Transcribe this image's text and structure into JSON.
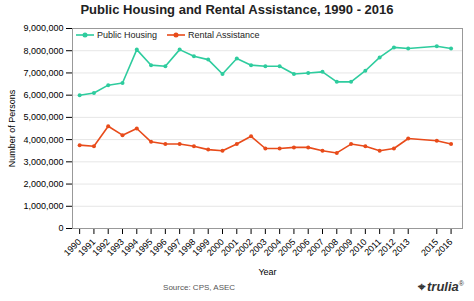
{
  "chart_data": {
    "type": "line",
    "title": "Public Housing and Rental Assistance, 1990 - 2016",
    "xlabel": "Year",
    "ylabel": "Number of Persons",
    "annotations": [
      "Source: CPS, ASEC",
      "⌖",
      "trulia",
      "®"
    ],
    "x": [
      1990,
      1991,
      1992,
      1993,
      1994,
      1995,
      1996,
      1997,
      1998,
      1999,
      2000,
      2001,
      2002,
      2003,
      2004,
      2005,
      2006,
      2007,
      2008,
      2009,
      2010,
      2011,
      2012,
      2013,
      2015,
      2016
    ],
    "series": [
      {
        "name": "Public Housing",
        "color": "#2ecc9e",
        "marker": "o",
        "values": [
          6000000,
          6100000,
          6450000,
          6550000,
          8050000,
          7350000,
          7300000,
          8050000,
          7750000,
          7600000,
          6950000,
          7650000,
          7350000,
          7300000,
          7300000,
          6950000,
          7000000,
          7050000,
          6600000,
          6600000,
          7100000,
          7700000,
          8150000,
          8100000,
          8200000,
          8100000
        ]
      },
      {
        "name": "Rental Assistance",
        "color": "#e84b1a",
        "marker": "o",
        "values": [
          3750000,
          3700000,
          4600000,
          4200000,
          4500000,
          3900000,
          3800000,
          3800000,
          3700000,
          3550000,
          3500000,
          3800000,
          4150000,
          3600000,
          3600000,
          3650000,
          3650000,
          3500000,
          3400000,
          3800000,
          3700000,
          3500000,
          3600000,
          4050000,
          3950000,
          3800000
        ]
      }
    ],
    "xlim": [
      1989.5,
      2016.8
    ],
    "xticks": [
      1990,
      1991,
      1992,
      1993,
      1994,
      1995,
      1996,
      1997,
      1998,
      1999,
      2000,
      2001,
      2002,
      2003,
      2004,
      2005,
      2006,
      2007,
      2008,
      2009,
      2010,
      2011,
      2012,
      2013,
      2015,
      2016
    ],
    "ylim": [
      0,
      9000000
    ],
    "yticks": [
      0,
      {
        "value": 1000000,
        "label": "1,000,000"
      },
      {
        "value": 2000000,
        "label": "2,000,000"
      },
      {
        "value": 3000000,
        "label": "3,000,000"
      },
      {
        "value": 4000000,
        "label": "4,000,000"
      },
      {
        "value": 5000000,
        "label": "5,000,000"
      },
      {
        "value": 6000000,
        "label": "6,000,000"
      },
      {
        "value": 7000000,
        "label": "7,000,000"
      },
      {
        "value": 8000000,
        "label": "8,000,000"
      },
      {
        "value": 9000000,
        "label": "9,000,000"
      }
    ],
    "grid": true,
    "legend": "upper left"
  }
}
